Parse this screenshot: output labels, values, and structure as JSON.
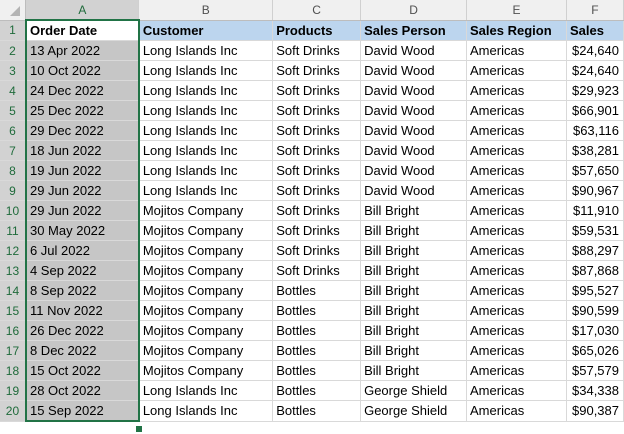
{
  "columns": [
    "A",
    "B",
    "C",
    "D",
    "E",
    "F"
  ],
  "headers": [
    "Order Date",
    "Customer",
    "Products",
    "Sales Person",
    "Sales Region",
    "Sales"
  ],
  "rows": [
    {
      "num": "2",
      "cells": [
        "13 Apr 2022",
        "Long Islands Inc",
        "Soft Drinks",
        "David Wood",
        "Americas",
        "$24,640"
      ]
    },
    {
      "num": "3",
      "cells": [
        "10 Oct 2022",
        "Long Islands Inc",
        "Soft Drinks",
        "David Wood",
        "Americas",
        "$24,640"
      ]
    },
    {
      "num": "4",
      "cells": [
        "24 Dec 2022",
        "Long Islands Inc",
        "Soft Drinks",
        "David Wood",
        "Americas",
        "$29,923"
      ]
    },
    {
      "num": "5",
      "cells": [
        "25 Dec 2022",
        "Long Islands Inc",
        "Soft Drinks",
        "David Wood",
        "Americas",
        "$66,901"
      ]
    },
    {
      "num": "6",
      "cells": [
        "29 Dec 2022",
        "Long Islands Inc",
        "Soft Drinks",
        "David Wood",
        "Americas",
        "$63,116"
      ]
    },
    {
      "num": "7",
      "cells": [
        "18 Jun 2022",
        "Long Islands Inc",
        "Soft Drinks",
        "David Wood",
        "Americas",
        "$38,281"
      ]
    },
    {
      "num": "8",
      "cells": [
        "19 Jun 2022",
        "Long Islands Inc",
        "Soft Drinks",
        "David Wood",
        "Americas",
        "$57,650"
      ]
    },
    {
      "num": "9",
      "cells": [
        "29 Jun 2022",
        "Long Islands Inc",
        "Soft Drinks",
        "David Wood",
        "Americas",
        "$90,967"
      ]
    },
    {
      "num": "10",
      "cells": [
        "29 Jun 2022",
        "Mojitos Company",
        "Soft Drinks",
        "Bill Bright",
        "Americas",
        "$11,910"
      ]
    },
    {
      "num": "11",
      "cells": [
        "30 May 2022",
        "Mojitos Company",
        "Soft Drinks",
        "Bill Bright",
        "Americas",
        "$59,531"
      ]
    },
    {
      "num": "12",
      "cells": [
        "6 Jul 2022",
        "Mojitos Company",
        "Soft Drinks",
        "Bill Bright",
        "Americas",
        "$88,297"
      ]
    },
    {
      "num": "13",
      "cells": [
        "4 Sep 2022",
        "Mojitos Company",
        "Soft Drinks",
        "Bill Bright",
        "Americas",
        "$87,868"
      ]
    },
    {
      "num": "14",
      "cells": [
        "8 Sep 2022",
        "Mojitos Company",
        "Bottles",
        "Bill Bright",
        "Americas",
        "$95,527"
      ]
    },
    {
      "num": "15",
      "cells": [
        "11 Nov 2022",
        "Mojitos Company",
        "Bottles",
        "Bill Bright",
        "Americas",
        "$90,599"
      ]
    },
    {
      "num": "16",
      "cells": [
        "26 Dec 2022",
        "Mojitos Company",
        "Bottles",
        "Bill Bright",
        "Americas",
        "$17,030"
      ]
    },
    {
      "num": "17",
      "cells": [
        "8 Dec 2022",
        "Mojitos Company",
        "Bottles",
        "Bill Bright",
        "Americas",
        "$65,026"
      ]
    },
    {
      "num": "18",
      "cells": [
        "15 Oct 2022",
        "Mojitos Company",
        "Bottles",
        "Bill Bright",
        "Americas",
        "$57,579"
      ]
    },
    {
      "num": "19",
      "cells": [
        "28 Oct 2022",
        "Long Islands Inc",
        "Bottles",
        "George Shield",
        "Americas",
        "$34,338"
      ]
    },
    {
      "num": "20",
      "cells": [
        "15 Sep 2022",
        "Long Islands Inc",
        "Bottles",
        "George Shield",
        "Americas",
        "$90,387"
      ]
    }
  ],
  "colors": {
    "header_fill": "#bcd5ee",
    "selection_fill": "#c6c6c6",
    "selection_border": "#217346"
  }
}
